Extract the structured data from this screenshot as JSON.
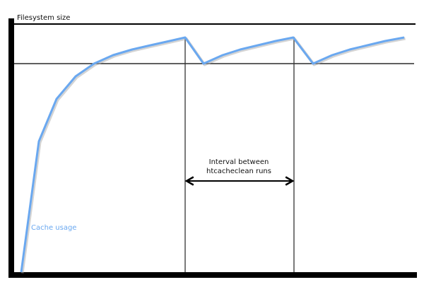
{
  "labels": {
    "y_axis": "Filesystem size",
    "interval_line1": "Interval between",
    "interval_line2": "htcacheclean runs",
    "series": "Cache usage"
  },
  "colors": {
    "curve": "#6aa8f0",
    "lines": "#000000"
  }
}
